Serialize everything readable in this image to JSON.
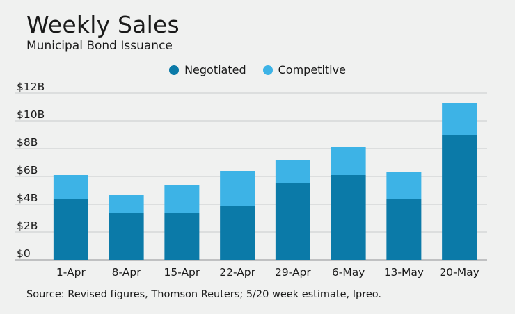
{
  "chart_data": {
    "type": "bar",
    "stacked": true,
    "title": "Weekly Sales",
    "subtitle": "Municipal Bond Issuance",
    "categories": [
      "1-Apr",
      "8-Apr",
      "15-Apr",
      "22-Apr",
      "29-Apr",
      "6-May",
      "13-May",
      "20-May"
    ],
    "series": [
      {
        "name": "Negotiated",
        "color": "#0b7aa8",
        "values": [
          4.4,
          3.4,
          3.4,
          3.9,
          5.5,
          6.1,
          4.4,
          9.0
        ]
      },
      {
        "name": "Competitive",
        "color": "#3db3e6",
        "values": [
          1.7,
          1.3,
          2.0,
          2.5,
          1.7,
          2.0,
          1.9,
          2.3
        ]
      }
    ],
    "y_ticks": [
      {
        "value": 0,
        "label": "$0"
      },
      {
        "value": 2,
        "label": "$2B"
      },
      {
        "value": 4,
        "label": "$4B"
      },
      {
        "value": 6,
        "label": "$6B"
      },
      {
        "value": 8,
        "label": "$8B"
      },
      {
        "value": 10,
        "label": "$10B"
      },
      {
        "value": 12,
        "label": "$12B"
      }
    ],
    "ylim": [
      0,
      12
    ],
    "grid": true,
    "legend_position": "top-center",
    "source": "Source: Revised figures, Thomson Reuters; 5/20 week estimate, Ipreo."
  }
}
